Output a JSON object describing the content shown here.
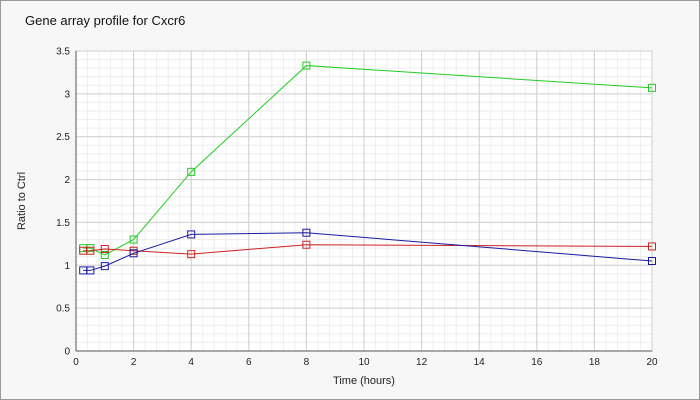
{
  "chart_data": {
    "type": "line",
    "title": "Gene array profile for Cxcr6",
    "xlabel": "Time (hours)",
    "ylabel": "Ratio to Ctrl",
    "xlim": [
      0,
      20
    ],
    "ylim": [
      0,
      3.5
    ],
    "xticks": [
      0,
      2,
      4,
      6,
      8,
      10,
      12,
      14,
      16,
      18,
      20
    ],
    "yticks": [
      0,
      0.5,
      1,
      1.5,
      2,
      2.5,
      3,
      3.5
    ],
    "xtick_labels": [
      "0",
      "2",
      "4",
      "6",
      "8",
      "10",
      "12",
      "14",
      "16",
      "18",
      "20"
    ],
    "ytick_labels": [
      "0",
      "0.5",
      "1",
      "1.5",
      "2",
      "2.5",
      "3",
      "3.5"
    ],
    "grid": true,
    "legend": "none",
    "series": [
      {
        "color": "#22cc22",
        "marker": "square",
        "x": [
          0.25,
          0.5,
          1,
          2,
          4,
          8,
          20
        ],
        "y": [
          1.2,
          1.2,
          1.12,
          1.3,
          2.09,
          3.33,
          3.07
        ]
      },
      {
        "color": "#cc2222",
        "marker": "square",
        "x": [
          0.25,
          0.5,
          1,
          2,
          4,
          8,
          20
        ],
        "y": [
          1.17,
          1.17,
          1.19,
          1.17,
          1.13,
          1.24,
          1.22
        ]
      },
      {
        "color": "#1a1aa0",
        "marker": "square",
        "x": [
          0.25,
          0.5,
          1,
          2,
          4,
          8,
          20
        ],
        "y": [
          0.94,
          0.94,
          0.99,
          1.14,
          1.36,
          1.38,
          1.05
        ]
      }
    ]
  }
}
